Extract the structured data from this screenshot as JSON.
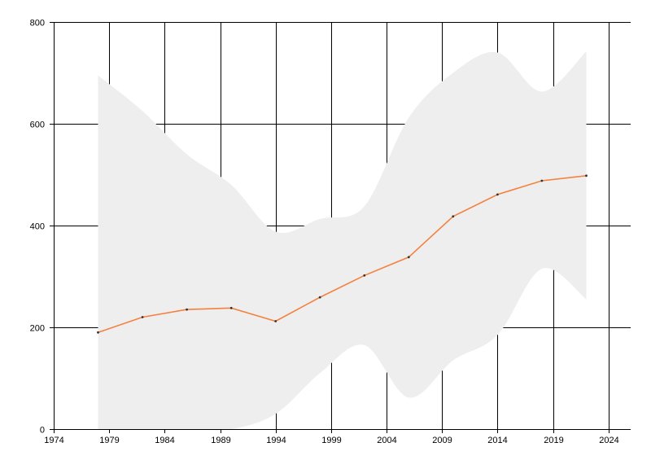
{
  "chart_data": {
    "type": "line",
    "title": "",
    "xlabel": "",
    "ylabel": "",
    "xlim": [
      1974,
      2026
    ],
    "ylim": [
      0,
      800
    ],
    "x_ticks": [
      1974,
      1979,
      1984,
      1989,
      1994,
      1999,
      2004,
      2009,
      2014,
      2019,
      2024
    ],
    "y_ticks": [
      0,
      200,
      400,
      600,
      800
    ],
    "grid": true,
    "legend": "none",
    "series": [
      {
        "type": "line",
        "color": "#f4813f",
        "marker_color": "#333333",
        "points": [
          {
            "x": 1978,
            "y": 190
          },
          {
            "x": 1982,
            "y": 220
          },
          {
            "x": 1986,
            "y": 235
          },
          {
            "x": 1990,
            "y": 238
          },
          {
            "x": 1994,
            "y": 212
          },
          {
            "x": 1998,
            "y": 259
          },
          {
            "x": 2002,
            "y": 302
          },
          {
            "x": 2006,
            "y": 338
          },
          {
            "x": 2010,
            "y": 418
          },
          {
            "x": 2014,
            "y": 461
          },
          {
            "x": 2018,
            "y": 488
          },
          {
            "x": 2022,
            "y": 498
          }
        ]
      },
      {
        "type": "range-area",
        "color": "#eeeeee",
        "points": [
          {
            "x": 1978,
            "low": 0,
            "high": 695
          },
          {
            "x": 1982,
            "low": 0,
            "high": 625
          },
          {
            "x": 1986,
            "low": 0,
            "high": 540
          },
          {
            "x": 1990,
            "low": 0,
            "high": 480
          },
          {
            "x": 1994,
            "low": 30,
            "high": 388
          },
          {
            "x": 1998,
            "low": 110,
            "high": 413
          },
          {
            "x": 2002,
            "low": 165,
            "high": 438
          },
          {
            "x": 2006,
            "low": 62,
            "high": 612
          },
          {
            "x": 2010,
            "low": 135,
            "high": 700
          },
          {
            "x": 2014,
            "low": 185,
            "high": 740
          },
          {
            "x": 2018,
            "low": 315,
            "high": 663
          },
          {
            "x": 2022,
            "low": 255,
            "high": 742
          }
        ]
      }
    ]
  }
}
